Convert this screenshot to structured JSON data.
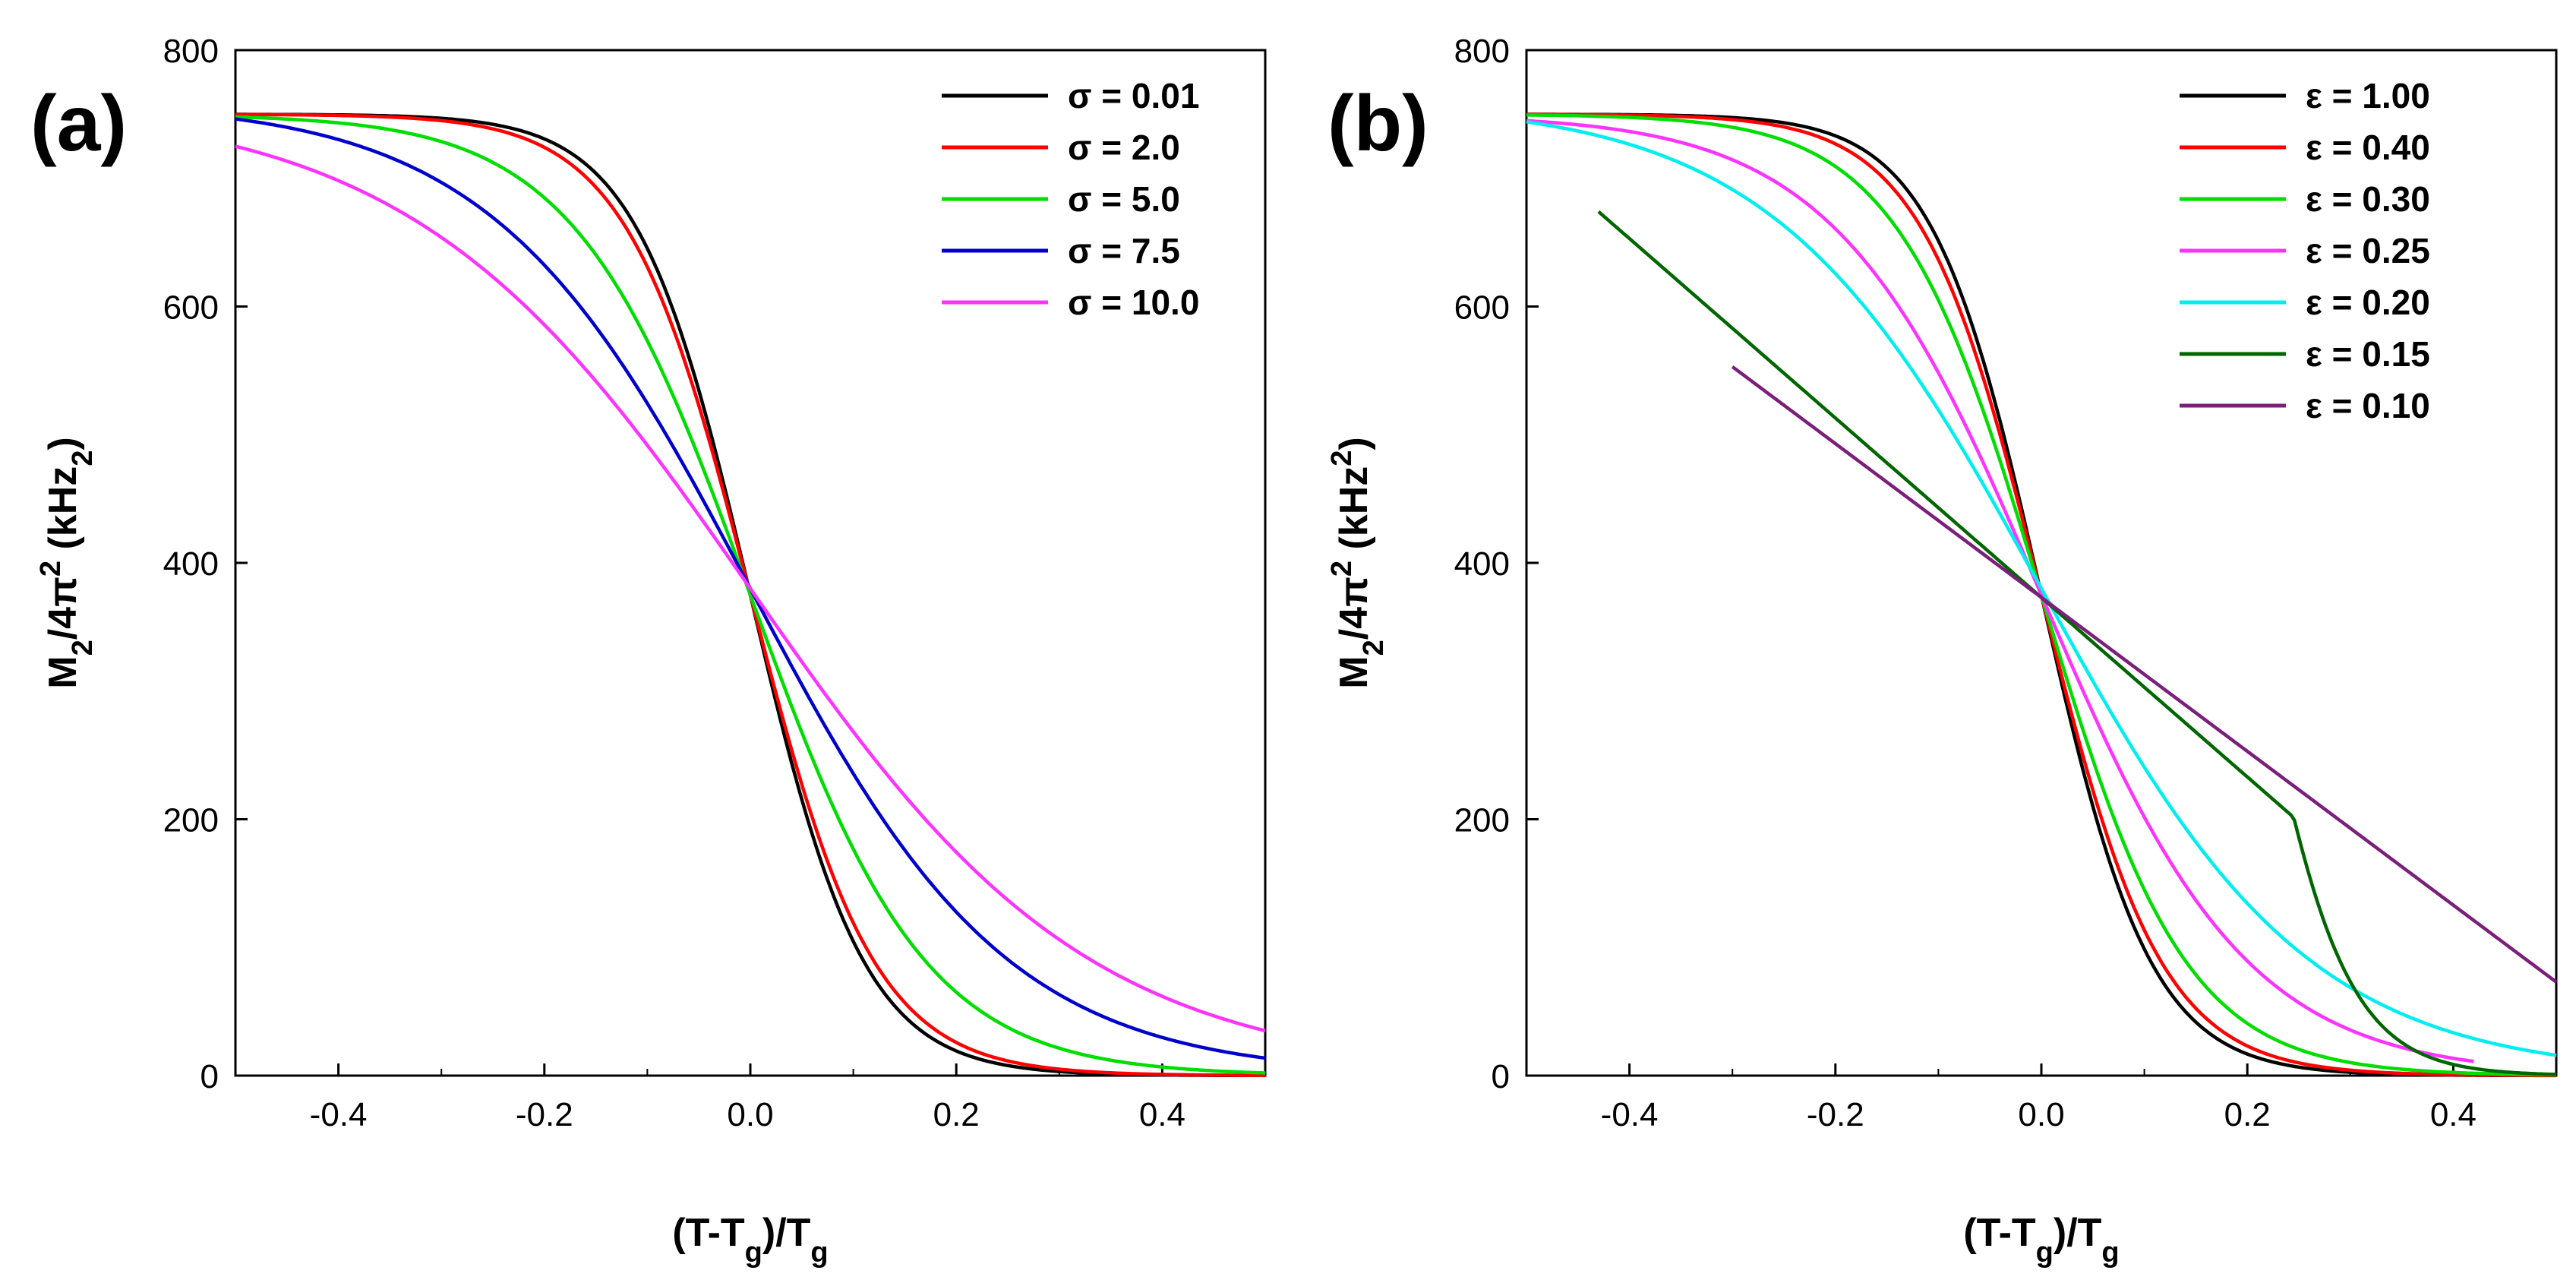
{
  "chart_data": [
    {
      "type": "line",
      "panel_label": "(a)",
      "xlabel": {
        "main": "(T-T",
        "sub": "g",
        "mid": ")/T",
        "sub2": "g"
      },
      "ylabel": {
        "a": "M",
        "a_sub": "2",
        "b": "/4π",
        "b_sup": "2",
        "c": " (kHz",
        "c_sub": "2",
        "d": ")"
      },
      "xlim": [
        -0.5,
        0.5
      ],
      "ylim": [
        0,
        800
      ],
      "x_ticks": [
        -0.4,
        -0.2,
        0.0,
        0.2,
        0.4
      ],
      "x_tick_labels": [
        "-0.4",
        "-0.2",
        "0.0",
        "0.2",
        "0.4"
      ],
      "y_ticks": [
        0,
        200,
        400,
        600,
        800
      ],
      "y_tick_labels": [
        "0",
        "200",
        "400",
        "600",
        "800"
      ],
      "legend_position": "top-right",
      "series": [
        {
          "name": "σ = 0.01",
          "color": "#000000",
          "curve": "sigmoid",
          "max": 750,
          "w": 0.055,
          "x0": -0.5,
          "x1": 0.5
        },
        {
          "name": "σ = 2.0",
          "color": "#ff0000",
          "curve": "sigmoid",
          "max": 750,
          "w": 0.06,
          "x0": -0.5,
          "x1": 0.5
        },
        {
          "name": "σ = 5.0",
          "color": "#00dd00",
          "curve": "sigmoid",
          "max": 750,
          "w": 0.085,
          "x0": -0.5,
          "x1": 0.5
        },
        {
          "name": "σ = 7.5",
          "color": "#0000cc",
          "curve": "sigmoid",
          "max": 760,
          "w": 0.125,
          "x0": -0.5,
          "x1": 0.5
        },
        {
          "name": "σ = 10.0",
          "color": "#ff33ff",
          "curve": "sigmoid",
          "max": 760,
          "w": 0.165,
          "x0": -0.5,
          "x1": 0.5
        }
      ]
    },
    {
      "type": "line",
      "panel_label": "(b)",
      "xlabel": {
        "main": "(T-T",
        "sub": "g",
        "mid": ")/T",
        "sub2": "g"
      },
      "ylabel": {
        "a": "M",
        "a_sub": "2",
        "b": "/4π",
        "b_sup": "2",
        "c": " (kHz",
        "c_sup": "2",
        "d": ")"
      },
      "xlim": [
        -0.5,
        0.5
      ],
      "ylim": [
        0,
        800
      ],
      "x_ticks": [
        -0.4,
        -0.2,
        0.0,
        0.2,
        0.4
      ],
      "x_tick_labels": [
        "-0.4",
        "-0.2",
        "0.0",
        "0.2",
        "0.4"
      ],
      "y_ticks": [
        0,
        200,
        400,
        600,
        800
      ],
      "y_tick_labels": [
        "0",
        "200",
        "400",
        "600",
        "800"
      ],
      "legend_position": "top-right",
      "series": [
        {
          "name": "ε = 1.00",
          "color": "#000000",
          "curve": "sigmoid",
          "max": 750,
          "w": 0.053,
          "x0": -0.5,
          "x1": 0.5
        },
        {
          "name": "ε = 0.40",
          "color": "#ff0000",
          "curve": "sigmoid",
          "max": 750,
          "w": 0.058,
          "x0": -0.5,
          "x1": 0.5
        },
        {
          "name": "ε = 0.30",
          "color": "#00dd00",
          "curve": "sigmoid",
          "max": 750,
          "w": 0.07,
          "x0": -0.5,
          "x1": 0.5
        },
        {
          "name": "ε = 0.25",
          "color": "#ff33ff",
          "curve": "sigmoid",
          "max": 750,
          "w": 0.1,
          "x0": -0.5,
          "x1": 0.42
        },
        {
          "name": "ε = 0.20",
          "color": "#00eeee",
          "curve": "sigmoid",
          "max": 760,
          "w": 0.13,
          "x0": -0.5,
          "x1": 0.5
        },
        {
          "name": "ε = 0.15",
          "color": "#006600",
          "curve": "linsig",
          "max": 750,
          "slope": 700,
          "cap": 0.2,
          "w": 0.045,
          "x0": -0.43,
          "x1": 0.5
        },
        {
          "name": "ε = 0.10",
          "color": "#7a1f7a",
          "curve": "linear",
          "y_at_0": 373,
          "slope": 600,
          "x0": -0.3,
          "x1": 0.5
        }
      ]
    }
  ]
}
